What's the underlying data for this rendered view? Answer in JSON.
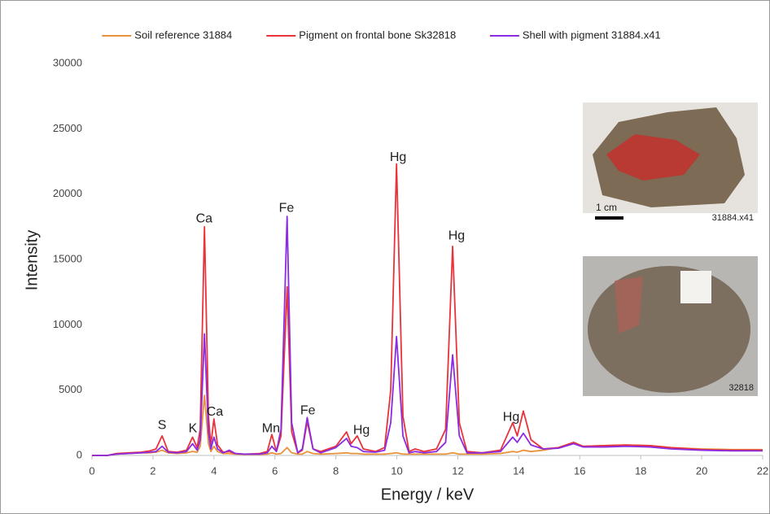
{
  "chart_data": {
    "type": "line",
    "x_label": "Energy / keV",
    "y_label": "Intensity",
    "xlim": [
      0,
      22
    ],
    "xticks": [
      0,
      2,
      4,
      6,
      8,
      10,
      12,
      14,
      16,
      18,
      20,
      22
    ],
    "ylim": [
      0,
      30000
    ],
    "yticks": [
      0,
      5000,
      10000,
      15000,
      20000,
      25000,
      30000
    ],
    "grid": false,
    "legend": "top",
    "x": [
      0,
      0.5,
      0.8,
      1.2,
      1.6,
      1.9,
      2.1,
      2.3,
      2.5,
      2.8,
      3.1,
      3.3,
      3.45,
      3.55,
      3.69,
      3.82,
      3.9,
      4.0,
      4.12,
      4.3,
      4.5,
      4.7,
      5.0,
      5.5,
      5.75,
      5.9,
      6.05,
      6.2,
      6.4,
      6.55,
      6.75,
      6.9,
      7.06,
      7.25,
      7.5,
      8.0,
      8.35,
      8.5,
      8.7,
      8.9,
      9.3,
      9.6,
      9.8,
      9.99,
      10.2,
      10.4,
      10.6,
      10.9,
      11.3,
      11.6,
      11.83,
      12.05,
      12.3,
      12.8,
      13.4,
      13.8,
      13.95,
      14.15,
      14.4,
      14.8,
      15.3,
      15.8,
      16.1,
      16.8,
      17.5,
      18.3,
      19,
      20,
      21,
      22
    ],
    "series": [
      {
        "name": "Soil reference 31884",
        "color": "#e8923a",
        "values": [
          0,
          0,
          100,
          150,
          200,
          200,
          250,
          400,
          200,
          150,
          200,
          300,
          250,
          700,
          4600,
          900,
          300,
          700,
          300,
          150,
          150,
          100,
          80,
          80,
          100,
          200,
          100,
          150,
          600,
          200,
          100,
          100,
          300,
          150,
          100,
          150,
          200,
          150,
          150,
          100,
          100,
          100,
          150,
          200,
          100,
          100,
          100,
          100,
          100,
          100,
          200,
          100,
          100,
          100,
          150,
          300,
          250,
          400,
          300,
          400,
          600,
          1000,
          700,
          750,
          800,
          750,
          600,
          500,
          450,
          450
        ]
      },
      {
        "name": "Pigment on frontal bone Sk32818",
        "color": "#e8333a",
        "values": [
          0,
          0,
          150,
          200,
          250,
          350,
          500,
          1500,
          300,
          250,
          400,
          1400,
          600,
          2000,
          17500,
          3000,
          800,
          2800,
          800,
          250,
          300,
          150,
          100,
          150,
          300,
          1600,
          300,
          1500,
          12900,
          1800,
          200,
          400,
          2600,
          500,
          300,
          700,
          1800,
          900,
          1500,
          500,
          300,
          600,
          5000,
          22300,
          3000,
          300,
          500,
          300,
          500,
          2000,
          16000,
          2500,
          300,
          200,
          400,
          2500,
          1500,
          3400,
          1200,
          500,
          600,
          1000,
          700,
          750,
          800,
          750,
          600,
          450,
          400,
          400
        ]
      },
      {
        "name": "Shell with pigment 31884.x41",
        "color": "#8b2be2",
        "values": [
          0,
          0,
          100,
          150,
          200,
          250,
          300,
          700,
          250,
          200,
          300,
          900,
          400,
          1200,
          9300,
          1800,
          500,
          1400,
          500,
          200,
          400,
          150,
          100,
          100,
          200,
          700,
          300,
          2000,
          18300,
          2500,
          200,
          500,
          2900,
          500,
          200,
          600,
          1300,
          700,
          600,
          300,
          250,
          400,
          2500,
          9100,
          1500,
          200,
          300,
          200,
          300,
          1000,
          7700,
          1500,
          200,
          200,
          300,
          1400,
          1000,
          1700,
          800,
          500,
          550,
          900,
          650,
          650,
          700,
          650,
          500,
          400,
          350,
          350
        ]
      }
    ],
    "annotations": [
      {
        "text": "S",
        "x": 2.3,
        "y": 2300
      },
      {
        "text": "K",
        "x": 3.31,
        "y": 2050
      },
      {
        "text": "Ca",
        "x": 3.68,
        "y": 18100
      },
      {
        "text": "Ca",
        "x": 4.03,
        "y": 3300
      },
      {
        "text": "Mn",
        "x": 5.87,
        "y": 2050
      },
      {
        "text": "Fe",
        "x": 6.38,
        "y": 18900
      },
      {
        "text": "Fe",
        "x": 7.08,
        "y": 3400
      },
      {
        "text": "Hg",
        "x": 8.84,
        "y": 1900
      },
      {
        "text": "Hg",
        "x": 10.04,
        "y": 22800
      },
      {
        "text": "Hg",
        "x": 11.96,
        "y": 16800
      },
      {
        "text": "Hg",
        "x": 13.75,
        "y": 2900
      }
    ]
  },
  "insets": [
    {
      "label": "31884.x41",
      "scale_bar": "1 cm"
    },
    {
      "label": "32818"
    }
  ]
}
